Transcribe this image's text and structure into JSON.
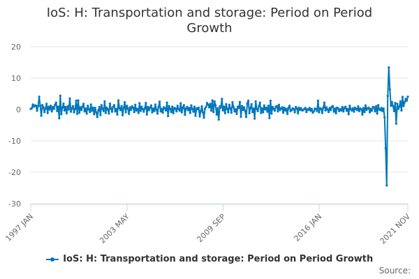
{
  "title_line1": "IoS: H: Transportation and storage: Period on Period",
  "title_line2": "Growth",
  "source": "Source:",
  "colors": {
    "series": "#0077bb",
    "grid": "#e6e6e6",
    "axis": "#ccd6eb"
  },
  "chart_data": {
    "type": "line",
    "title": "IoS: H: Transportation and storage: Period on Period Growth",
    "xlabel": "",
    "ylabel": "",
    "ylim": [
      -30,
      20
    ],
    "y_ticks": [
      20,
      10,
      0,
      -10,
      -20,
      -30
    ],
    "x_tick_labels": [
      "1997 JAN",
      "2003 MAY",
      "2009 SEP",
      "2016 JAN",
      "2021 NOV"
    ],
    "x_start": "1997-01",
    "x_end": "2021-11",
    "frequency": "monthly",
    "grid": true,
    "legend_position": "bottom",
    "series": [
      {
        "name": "IoS: H: Transportation and storage: Period on Period Growth",
        "values": [
          0.2,
          0.4,
          1.6,
          0.9,
          1.3,
          1.2,
          -0.4,
          1.1,
          4.1,
          1.2,
          -2.0,
          1.4,
          0.7,
          -0.8,
          0.3,
          1.8,
          -1.1,
          0.9,
          0.0,
          1.2,
          -0.6,
          0.8,
          0.2,
          1.5,
          2.2,
          -0.5,
          0.9,
          -2.8,
          4.4,
          -1.5,
          0.6,
          1.9,
          -0.3,
          0.8,
          -1.2,
          1.0,
          0.0,
          3.5,
          -0.7,
          0.4,
          1.1,
          -0.9,
          0.2,
          2.8,
          -1.4,
          2.9,
          -1.0,
          0.7,
          -0.2,
          0.9,
          1.8,
          -0.6,
          0.3,
          -1.3,
          1.2,
          0.1,
          -0.8,
          1.6,
          -0.4,
          0.6,
          -1.5,
          0.5,
          -0.9,
          -2.4,
          -0.3,
          0.8,
          -1.8,
          1.4,
          0.2,
          -0.5,
          2.6,
          -1.1,
          0.6,
          0.0,
          -1.3,
          1.9,
          0.3,
          -0.7,
          0.9,
          1.4,
          -0.6,
          0.2,
          -1.6,
          2.9,
          0.4,
          -0.2,
          1.1,
          -1.8,
          0.5,
          2.3,
          -0.9,
          1.2,
          0.3,
          -1.4,
          0.7,
          -0.1,
          1.0,
          0.6,
          -0.8,
          1.5,
          -0.3,
          0.2,
          -1.1,
          2.0,
          -0.5,
          0.9,
          0.1,
          -0.7,
          0.4,
          2.1,
          -1.6,
          0.8,
          -0.2,
          0.6,
          1.3,
          -0.9,
          0.3,
          -0.5,
          1.6,
          0.0,
          -1.3,
          0.8,
          2.5,
          -0.6,
          0.2,
          -1.0,
          0.7,
          0.4,
          -0.3,
          2.2,
          -2.1,
          1.1,
          0.2,
          -0.8,
          0.9,
          -1.2,
          0.5,
          0.3,
          -0.6,
          1.2,
          0.1,
          -0.4,
          2.0,
          -0.9,
          0.6,
          1.4,
          -1.7,
          0.3,
          0.8,
          -0.2,
          0.5,
          -1.1,
          1.3,
          0.2,
          -0.7,
          0.9,
          -2.0,
          0.4,
          0.1,
          0.6,
          -2.2,
          -0.5,
          1.0,
          -0.9,
          -2.6,
          0.3,
          0.8,
          2.1,
          1.5,
          0.7,
          1.8,
          -0.4,
          2.9,
          -0.8,
          2.6,
          1.3,
          -1.6,
          0.4,
          -3.2,
          1.0,
          0.6,
          3.4,
          -0.3,
          0.9,
          -1.2,
          1.7,
          0.2,
          -0.9,
          1.5,
          0.4,
          -1.0,
          2.3,
          0.8,
          -0.6,
          0.1,
          -1.4,
          0.9,
          0.5,
          2.4,
          -2.3,
          1.1,
          -0.1,
          0.7,
          -0.5,
          -2.4,
          1.9,
          2.8,
          -1.2,
          0.5,
          1.7,
          -0.8,
          0.3,
          -2.9,
          2.6,
          0.2,
          -0.5,
          1.1,
          2.2,
          -1.1,
          0.4,
          -0.9,
          1.3,
          0.0,
          0.6,
          -0.7,
          1.2,
          -2.7,
          2.8,
          -1.3,
          0.8,
          0.2,
          -0.4,
          0.9,
          1.1,
          -0.6,
          1.5,
          -0.2,
          0.3,
          0.7,
          -1.0,
          0.6,
          -0.3,
          0.2,
          -1.4,
          0.5,
          1.2,
          -0.5,
          -0.2,
          0.4,
          0.1,
          -0.9,
          0.8,
          0.3,
          -1.2,
          0.6,
          -0.1,
          0.4,
          -0.3,
          -0.2,
          0.2,
          0.5,
          -0.8,
          0.1,
          -0.1,
          0.5,
          -0.4,
          0.2,
          -1.0,
          -0.6,
          0.3,
          0.1,
          -0.5,
          2.8,
          -0.9,
          0.4,
          0.2,
          -1.1,
          0.6,
          2.2,
          -0.3,
          0.7,
          0.0,
          -0.8,
          0.5,
          -0.2,
          0.9,
          1.1,
          -0.7,
          0.3,
          -1.2,
          0.6,
          0.4,
          -0.5,
          0.1,
          -0.3,
          0.8,
          -0.6,
          0.5,
          0.9,
          -0.4,
          0.2,
          -1.5,
          1.2,
          0.1,
          -0.3,
          0.4,
          -0.7,
          0.6,
          0.2,
          -0.2,
          1.0,
          -0.5,
          0.3,
          0.1,
          -1.6,
          0.5,
          -0.8,
          1.3,
          -0.1,
          0.4,
          0.6,
          -0.9,
          0.2,
          -0.4,
          0.8,
          0.7,
          -0.6,
          1.1,
          -1.3,
          1.4,
          0.0,
          -0.2,
          0.5,
          -0.5,
          0.3,
          -2.5,
          -12.3,
          -24.2,
          4.3,
          13.4,
          6.4,
          1.2,
          2.4,
          1.1,
          -0.5,
          2.1,
          -4.5,
          1.8,
          0.2,
          0.9,
          2.6,
          -0.3,
          4.0,
          1.1,
          2.3,
          3.4,
          2.8,
          4.1
        ]
      }
    ]
  }
}
